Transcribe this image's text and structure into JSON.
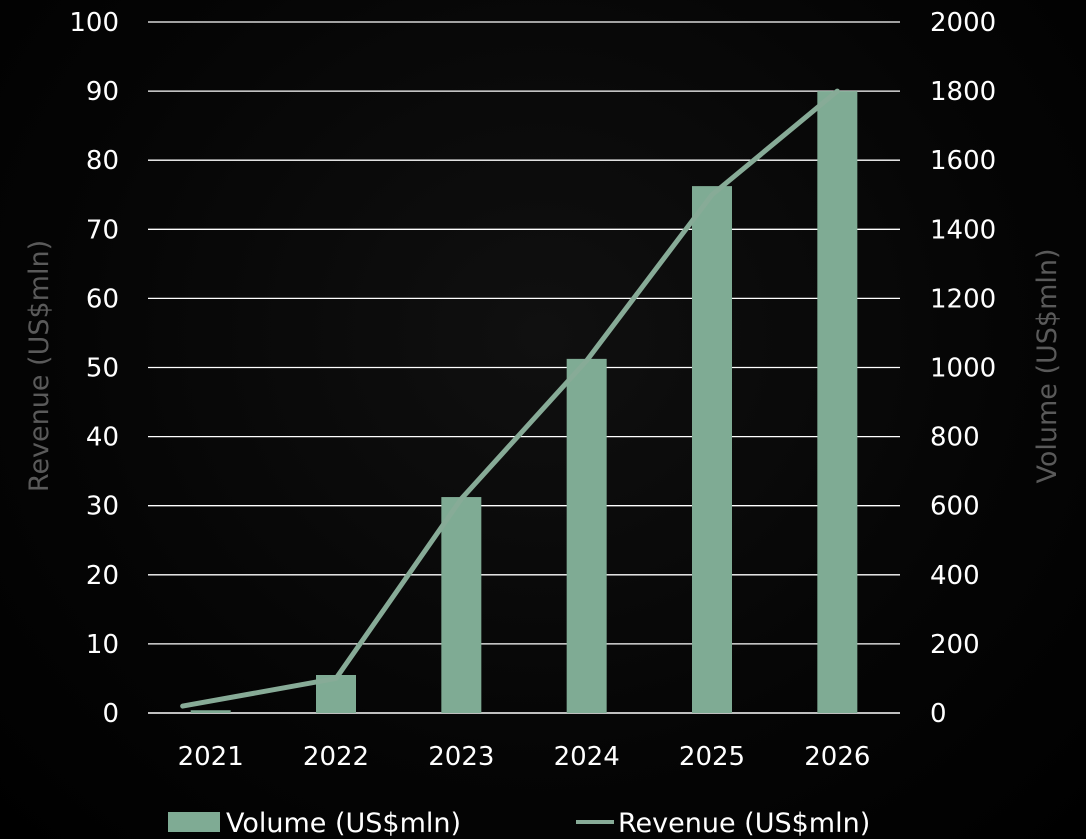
{
  "chart_data": {
    "type": "bar",
    "categories": [
      "2021",
      "2022",
      "2023",
      "2024",
      "2025",
      "2026"
    ],
    "series": [
      {
        "name": "Volume (US$mln)",
        "type": "bar",
        "axis": "right",
        "values": [
          8,
          110,
          625,
          1025,
          1525,
          1800
        ]
      },
      {
        "name": "Revenue (US$mln)",
        "type": "line",
        "axis": "left",
        "values": [
          1,
          5,
          31,
          51,
          75,
          90
        ]
      }
    ],
    "y_left": {
      "label": "Revenue (US$mln)",
      "ylim": [
        0,
        100
      ],
      "ticks": [
        "0",
        "10",
        "20",
        "30",
        "40",
        "50",
        "60",
        "70",
        "80",
        "90",
        "100"
      ]
    },
    "y_right": {
      "label": "Volume (US$mln)",
      "ylim": [
        0,
        2000
      ],
      "ticks": [
        "0",
        "200",
        "400",
        "600",
        "800",
        "1000",
        "1200",
        "1400",
        "1600",
        "1800",
        "2000"
      ]
    },
    "grid": true,
    "legend": "bottom-center",
    "colors": {
      "bar": "#7fab94",
      "line": "#87ab97",
      "gridline": "#ffffff",
      "tick_text": "#ffffff",
      "axis_title": "#5a5a5a",
      "background": "#000000"
    }
  }
}
